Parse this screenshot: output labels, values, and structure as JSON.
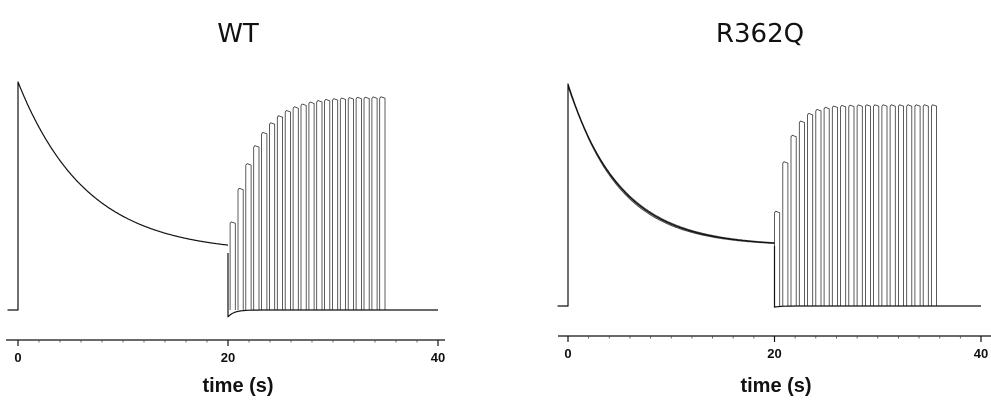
{
  "chart_data": [
    {
      "type": "line",
      "title": "WT",
      "xlabel": "time (s)",
      "ylabel": "",
      "xlim": [
        0,
        40
      ],
      "ylim": [
        0,
        1
      ],
      "xticks": [
        0,
        20,
        40
      ],
      "xtick_labels": [
        "0",
        "20",
        "40"
      ],
      "grid": false,
      "legend": "none",
      "baseline": 0.0,
      "prepulse": {
        "start": -1,
        "end": 0,
        "level": 0.0
      },
      "decay": {
        "start": 0,
        "end": 20,
        "peak": 1.0,
        "plateau": 0.25,
        "tau": 6.5
      },
      "step_undershoot": -0.03,
      "sweeps": {
        "first_start": 20.2,
        "interval": 0.75,
        "count": 20,
        "width": 0.5,
        "amp_initial": 0.38,
        "amp_max": 0.93,
        "amp_tau": 3.2,
        "end": 40
      },
      "color": "#111111"
    },
    {
      "type": "line",
      "title": "R362Q",
      "xlabel": "time (s)",
      "ylabel": "",
      "xlim": [
        0,
        40
      ],
      "ylim": [
        0,
        1
      ],
      "xticks": [
        0,
        20,
        40
      ],
      "xtick_labels": [
        "0",
        "20",
        "40"
      ],
      "grid": false,
      "legend": "none",
      "baseline": 0.0,
      "prepulse": {
        "start": -1,
        "end": 0,
        "level": 0.0
      },
      "decay": {
        "start": 0,
        "end": 20,
        "peak": 1.0,
        "plateau": 0.27,
        "tau": 5.0
      },
      "step_undershoot": -0.005,
      "sweeps": {
        "first_start": 20.0,
        "interval": 0.8,
        "count": 20,
        "width": 0.5,
        "amp_initial": 0.42,
        "amp_max": 0.9,
        "amp_tau": 1.6,
        "end": 40
      },
      "color": "#111111"
    }
  ]
}
